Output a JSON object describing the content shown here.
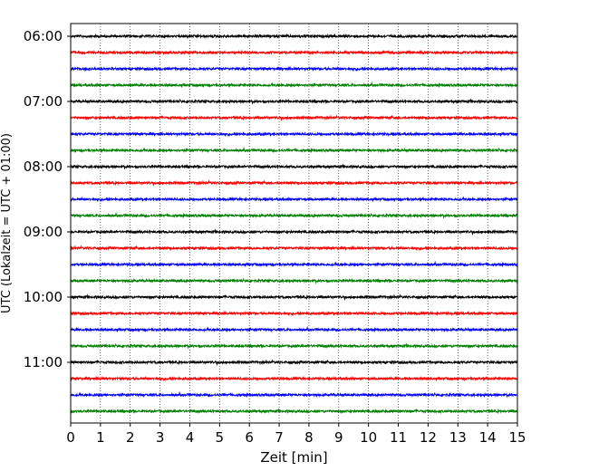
{
  "chart_data": {
    "type": "line",
    "subtype": "helicorder",
    "title": "",
    "xlabel": "Zeit  [min]",
    "ylabel": "UTC (Lokalzeit = UTC + 01:00)",
    "xlim": [
      0,
      15
    ],
    "x_ticks": [
      0,
      1,
      2,
      3,
      4,
      5,
      6,
      7,
      8,
      9,
      10,
      11,
      12,
      13,
      14,
      15
    ],
    "x_tick_labels": [
      "0",
      "1",
      "2",
      "3",
      "4",
      "5",
      "6",
      "7",
      "8",
      "9",
      "10",
      "11",
      "12",
      "13",
      "14",
      "15"
    ],
    "y_tick_labels": [
      "06:00",
      "07:00",
      "08:00",
      "09:00",
      "10:00",
      "11:00"
    ],
    "trace_interval_min": 15,
    "grid": "vertical dotted at each minute",
    "legend": "none",
    "colors": [
      "#000000",
      "#ff0000",
      "#0000ff",
      "#008000"
    ],
    "traces": [
      {
        "start": "06:00",
        "color": "#000000"
      },
      {
        "start": "06:15",
        "color": "#ff0000"
      },
      {
        "start": "06:30",
        "color": "#0000ff"
      },
      {
        "start": "06:45",
        "color": "#008000"
      },
      {
        "start": "07:00",
        "color": "#000000"
      },
      {
        "start": "07:15",
        "color": "#ff0000"
      },
      {
        "start": "07:30",
        "color": "#0000ff"
      },
      {
        "start": "07:45",
        "color": "#008000"
      },
      {
        "start": "08:00",
        "color": "#000000"
      },
      {
        "start": "08:15",
        "color": "#ff0000"
      },
      {
        "start": "08:30",
        "color": "#0000ff"
      },
      {
        "start": "08:45",
        "color": "#008000"
      },
      {
        "start": "09:00",
        "color": "#000000"
      },
      {
        "start": "09:15",
        "color": "#ff0000"
      },
      {
        "start": "09:30",
        "color": "#0000ff"
      },
      {
        "start": "09:45",
        "color": "#008000"
      },
      {
        "start": "10:00",
        "color": "#000000"
      },
      {
        "start": "10:15",
        "color": "#ff0000"
      },
      {
        "start": "10:30",
        "color": "#0000ff"
      },
      {
        "start": "10:45",
        "color": "#008000"
      },
      {
        "start": "11:00",
        "color": "#000000"
      },
      {
        "start": "11:15",
        "color": "#ff0000"
      },
      {
        "start": "11:30",
        "color": "#0000ff"
      },
      {
        "start": "11:45",
        "color": "#008000"
      }
    ]
  }
}
